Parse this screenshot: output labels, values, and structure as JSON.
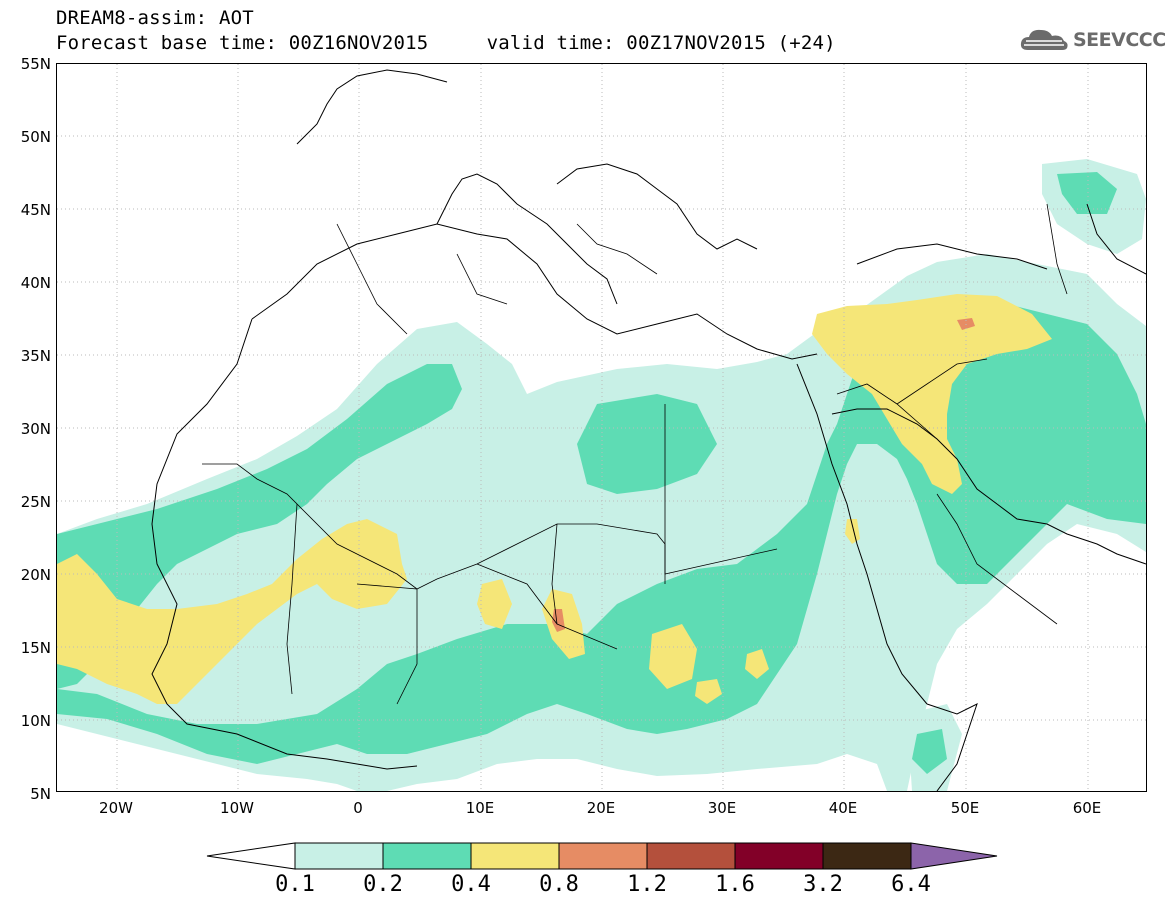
{
  "header": {
    "title": "DREAM8-assim: AOT",
    "subtitle": "Forecast base time: 00Z16NOV2015     valid time: 00Z17NOV2015 (+24)"
  },
  "brand": {
    "name": "SEEVCCC",
    "icon": "cloud-icon"
  },
  "map": {
    "lat_labels": [
      "55N",
      "50N",
      "45N",
      "40N",
      "35N",
      "30N",
      "25N",
      "20N",
      "15N",
      "10N",
      "5N"
    ],
    "lon_labels": [
      "20W",
      "10W",
      "0",
      "10E",
      "20E",
      "30E",
      "40E",
      "50E",
      "60E"
    ],
    "fill_colors": {
      "0.1-0.2": "#c8f0e6",
      "0.2-0.4": "#5edcb4",
      "0.4-0.8": "#f5e678",
      "0.8-1.2": "#e68c64",
      "1.2-1.6": "#b4503c",
      "1.6-3.2": "#820028",
      "3.2-6.4": "#3c2814",
      "over": "#8c64aa"
    }
  },
  "colorbar": {
    "labels": [
      "0.1",
      "0.2",
      "0.4",
      "0.8",
      "1.2",
      "1.6",
      "3.2",
      "6.4"
    ],
    "colors": [
      "#c8f0e6",
      "#5edcb4",
      "#f5e678",
      "#e68c64",
      "#b4503c",
      "#820028",
      "#3c2814"
    ],
    "under_color": "#ffffff",
    "over_color": "#8c64aa"
  }
}
